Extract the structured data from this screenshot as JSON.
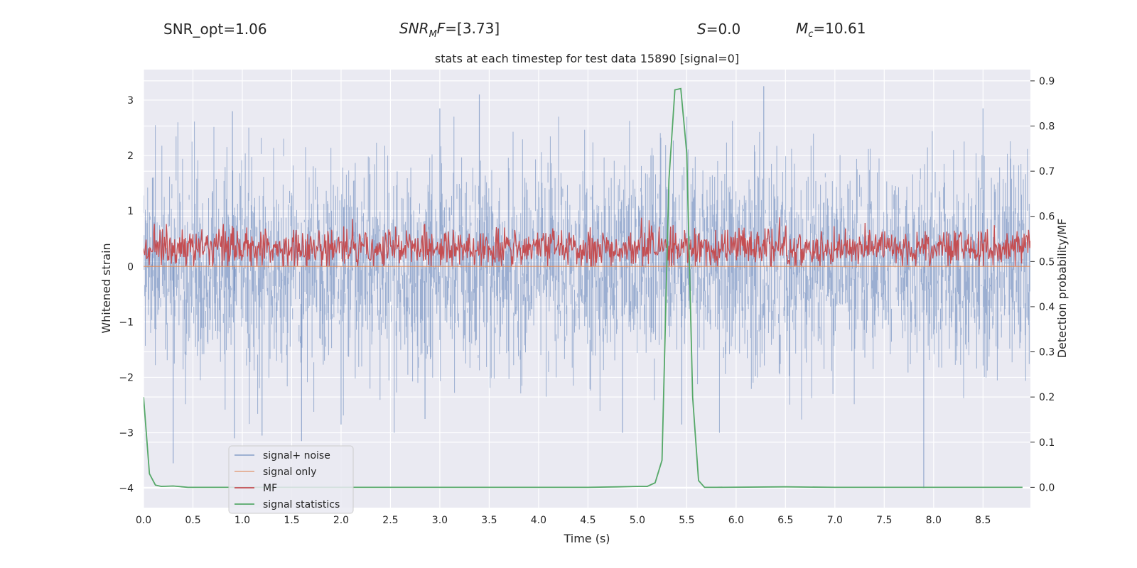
{
  "header": {
    "snr_opt": "SNR_opt=1.06",
    "snr_mf_base": "SNR",
    "snr_mf_sub": "M",
    "snr_mf_tail": "F",
    "snr_mf_value": "=[3.73]",
    "s_symbol": "S",
    "s_value": "=0.0",
    "mc_symbol": "M",
    "mc_sub": "c",
    "mc_value": "=10.61"
  },
  "chart_data": {
    "type": "line",
    "title": "stats at each timestep for test data 15890 [signal=0]",
    "xlabel": "Time (s)",
    "ylabel": "Whitened strain",
    "y2label": "Detection probability/MF",
    "xlim": [
      0,
      8.98
    ],
    "ylim": [
      -4.35,
      3.55
    ],
    "y2lim": [
      -0.045,
      0.925
    ],
    "xticks": [
      "0.0",
      "0.5",
      "1.0",
      "1.5",
      "2.0",
      "2.5",
      "3.0",
      "3.5",
      "4.0",
      "4.5",
      "5.0",
      "5.5",
      "6.0",
      "6.5",
      "7.0",
      "7.5",
      "8.0",
      "8.5"
    ],
    "yticks": [
      "3",
      "2",
      "1",
      "0",
      "−1",
      "−2",
      "−3",
      "−4"
    ],
    "y2ticks": [
      "0.9",
      "0.8",
      "0.7",
      "0.6",
      "0.5",
      "0.4",
      "0.3",
      "0.2",
      "0.1",
      "0.0"
    ],
    "grid": true,
    "legend_position": "lower-left",
    "series": [
      {
        "name": "signal+ noise",
        "axis": "left",
        "color": "#4c72b0",
        "style": "dense noise, approx. Gaussian, std ~1, min ~ -4.0, max ~ 3.2",
        "peaks": [
          {
            "x": 0.09,
            "y": 1.6
          },
          {
            "x": 0.3,
            "y": -3.55
          },
          {
            "x": 0.9,
            "y": 2.8
          },
          {
            "x": 0.92,
            "y": -3.1
          },
          {
            "x": 1.2,
            "y": -3.05
          },
          {
            "x": 1.6,
            "y": -3.15
          },
          {
            "x": 2.0,
            "y": -2.85
          },
          {
            "x": 2.85,
            "y": -2.75
          },
          {
            "x": 3.0,
            "y": 2.85
          },
          {
            "x": 3.4,
            "y": 3.1
          },
          {
            "x": 4.85,
            "y": -3.0
          },
          {
            "x": 5.45,
            "y": -2.85
          },
          {
            "x": 6.28,
            "y": 3.25
          },
          {
            "x": 7.9,
            "y": -4.0
          },
          {
            "x": 8.5,
            "y": 2.85
          }
        ]
      },
      {
        "name": "signal only",
        "axis": "left",
        "color": "#dd8452",
        "constant": 0.0
      },
      {
        "name": "MF",
        "axis": "right",
        "color": "#c44e52",
        "style": "noise band between ~0.49 and ~0.6"
      },
      {
        "name": "signal statistics",
        "axis": "right",
        "color": "#55a868",
        "x": [
          0.0,
          0.06,
          0.12,
          0.18,
          0.3,
          0.45,
          0.6,
          1.0,
          2.0,
          3.0,
          4.0,
          4.5,
          4.8,
          5.0,
          5.1,
          5.18,
          5.25,
          5.32,
          5.38,
          5.44,
          5.5,
          5.56,
          5.62,
          5.68,
          5.8,
          6.5,
          7.0,
          8.0,
          8.9
        ],
        "values": [
          0.2,
          0.03,
          0.005,
          0.002,
          0.003,
          0.0,
          0.0,
          0.0,
          0.0,
          0.0,
          0.0,
          0.0,
          0.001,
          0.002,
          0.002,
          0.01,
          0.06,
          0.68,
          0.88,
          0.883,
          0.74,
          0.2,
          0.015,
          0.0,
          0.0,
          0.001,
          0.0,
          0.0,
          0.0
        ]
      }
    ]
  }
}
